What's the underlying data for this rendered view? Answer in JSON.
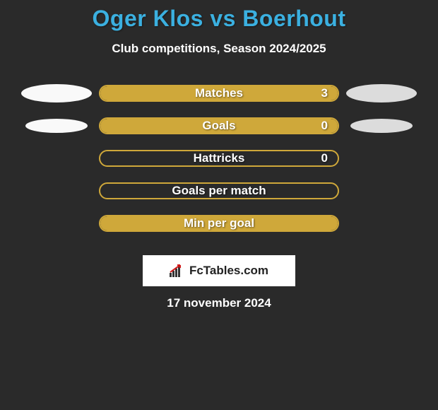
{
  "title": "Oger Klos vs Boerhout",
  "title_color": "#3bb0e0",
  "subtitle": "Club competitions, Season 2024/2025",
  "background_color": "#2a2a2a",
  "left_color": "#f9f9f9",
  "right_color": "#dcdcdc",
  "bar_border": "#cfa83a",
  "rows": [
    {
      "label": "Matches",
      "value": "3",
      "fill_pct": 100,
      "fill_color": "#cfa83a",
      "show_value": true,
      "show_left_ellipse": true,
      "left_ellipse_small": false,
      "show_right_ellipse": true,
      "right_ellipse_small": false
    },
    {
      "label": "Goals",
      "value": "0",
      "fill_pct": 100,
      "fill_color": "#cfa83a",
      "show_value": true,
      "show_left_ellipse": true,
      "left_ellipse_small": true,
      "show_right_ellipse": true,
      "right_ellipse_small": true
    },
    {
      "label": "Hattricks",
      "value": "0",
      "fill_pct": 0,
      "fill_color": "#cfa83a",
      "show_value": true,
      "show_left_ellipse": false,
      "left_ellipse_small": false,
      "show_right_ellipse": false,
      "right_ellipse_small": false
    },
    {
      "label": "Goals per match",
      "value": "",
      "fill_pct": 0,
      "fill_color": "#cfa83a",
      "show_value": false,
      "show_left_ellipse": false,
      "left_ellipse_small": false,
      "show_right_ellipse": false,
      "right_ellipse_small": false
    },
    {
      "label": "Min per goal",
      "value": "",
      "fill_pct": 100,
      "fill_color": "#cfa83a",
      "show_value": false,
      "show_left_ellipse": false,
      "left_ellipse_small": false,
      "show_right_ellipse": false,
      "right_ellipse_small": false
    }
  ],
  "logo": {
    "brand": "FcTables.com",
    "box_bg": "#ffffff",
    "text_color": "#222222",
    "bar_color": "#333333",
    "arrow_color": "#d01818"
  },
  "date": "17 november 2024"
}
